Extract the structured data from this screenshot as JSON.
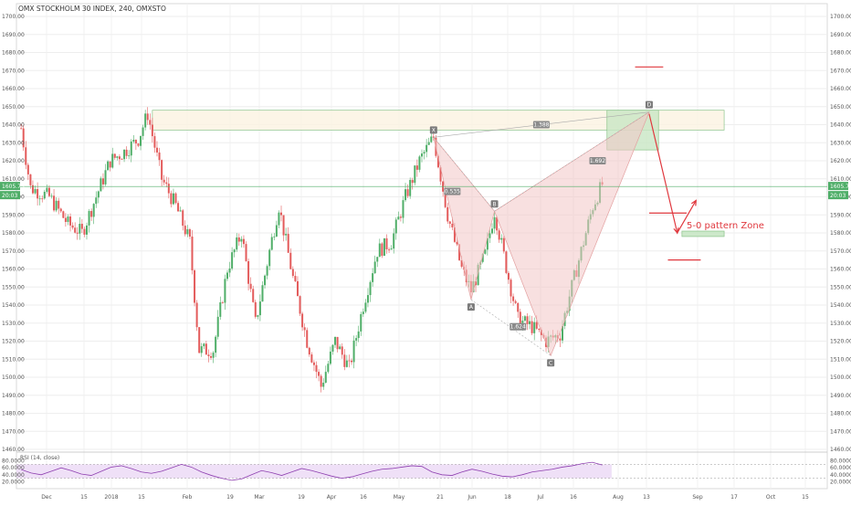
{
  "chart_data": {
    "type": "candlestick",
    "title": "OMX STOCKHOLM 30 INDEX, 240, OMXSTO",
    "y_axis": {
      "range": [
        1460,
        1700
      ],
      "ticks": [
        "1700.00",
        "1690.00",
        "1680.00",
        "1670.00",
        "1660.00",
        "1650.00",
        "1640.00",
        "1630.00",
        "1620.00",
        "1610.00",
        "1600.00",
        "1590.00",
        "1580.00",
        "1570.00",
        "1560.00",
        "1550.00",
        "1540.00",
        "1530.00",
        "1520.00",
        "1510.00",
        "1500.00",
        "1490.00",
        "1480.00",
        "1470.00",
        "1460.00"
      ]
    },
    "x_ticks": [
      "Dec",
      "15",
      "2018",
      "15",
      "Feb",
      "19",
      "Mar",
      "19",
      "Apr",
      "16",
      "May",
      "21",
      "Jun",
      "18",
      "Jul",
      "16",
      "Aug",
      "13",
      "Sep",
      "17",
      "Oct",
      "15"
    ],
    "last_price": "1605.75",
    "price_badge_2": "20:03",
    "grid": true,
    "price_path": [
      {
        "t": 0,
        "v": 1638
      },
      {
        "t": 2,
        "v": 1605
      },
      {
        "t": 6,
        "v": 1600
      },
      {
        "t": 10,
        "v": 1585
      },
      {
        "t": 13,
        "v": 1580
      },
      {
        "t": 16,
        "v": 1600
      },
      {
        "t": 19,
        "v": 1620
      },
      {
        "t": 22,
        "v": 1625
      },
      {
        "t": 25,
        "v": 1632
      },
      {
        "t": 27,
        "v": 1646
      },
      {
        "t": 30,
        "v": 1610
      },
      {
        "t": 33,
        "v": 1595
      },
      {
        "t": 36,
        "v": 1575
      },
      {
        "t": 38,
        "v": 1515
      },
      {
        "t": 41,
        "v": 1515
      },
      {
        "t": 44,
        "v": 1560
      },
      {
        "t": 47,
        "v": 1580
      },
      {
        "t": 50,
        "v": 1530
      },
      {
        "t": 53,
        "v": 1570
      },
      {
        "t": 55,
        "v": 1595
      },
      {
        "t": 58,
        "v": 1555
      },
      {
        "t": 61,
        "v": 1520
      },
      {
        "t": 64,
        "v": 1495
      },
      {
        "t": 67,
        "v": 1520
      },
      {
        "t": 70,
        "v": 1505
      },
      {
        "t": 73,
        "v": 1540
      },
      {
        "t": 76,
        "v": 1570
      },
      {
        "t": 79,
        "v": 1575
      },
      {
        "t": 82,
        "v": 1600
      },
      {
        "t": 85,
        "v": 1620
      },
      {
        "t": 88,
        "v": 1633
      },
      {
        "t": 91,
        "v": 1590
      },
      {
        "t": 94,
        "v": 1560
      },
      {
        "t": 96,
        "v": 1548
      },
      {
        "t": 99,
        "v": 1568
      },
      {
        "t": 101,
        "v": 1592
      },
      {
        "t": 104,
        "v": 1555
      },
      {
        "t": 106,
        "v": 1532
      },
      {
        "t": 109,
        "v": 1528
      },
      {
        "t": 112,
        "v": 1520
      },
      {
        "t": 115,
        "v": 1524
      },
      {
        "t": 117,
        "v": 1545
      },
      {
        "t": 120,
        "v": 1575
      },
      {
        "t": 122,
        "v": 1595
      },
      {
        "t": 124,
        "v": 1607
      }
    ],
    "pattern": {
      "points": [
        {
          "label": "X",
          "t": 88,
          "v": 1633
        },
        {
          "label": "A",
          "t": 96,
          "v": 1543
        },
        {
          "label": "B",
          "t": 101,
          "v": 1592
        },
        {
          "label": "C",
          "t": 113,
          "v": 1512
        },
        {
          "label": "D",
          "t": 134,
          "v": 1647
        }
      ],
      "ratios": [
        {
          "text": "0.535",
          "t": 92,
          "v": 1603
        },
        {
          "text": "1.624",
          "t": 106,
          "v": 1528
        },
        {
          "text": "1.692",
          "t": 123,
          "v": 1620
        },
        {
          "text": "1.388",
          "t": 111,
          "v": 1640
        }
      ]
    },
    "zones": [
      {
        "kind": "resistance",
        "t_start": 28,
        "t_end": 150,
        "v_low": 1637,
        "v_high": 1648
      },
      {
        "kind": "target",
        "t_start": 125,
        "t_end": 136,
        "v_low": 1626,
        "v_high": 1648
      },
      {
        "kind": "support",
        "t_start": 141,
        "t_end": 150,
        "v_low": 1578,
        "v_high": 1581
      }
    ],
    "projection": [
      {
        "t": 134,
        "v": 1646
      },
      {
        "t": 140,
        "v": 1580
      },
      {
        "t": 144,
        "v": 1598
      }
    ],
    "levels": [
      {
        "t_start": 131,
        "t_end": 137,
        "v": 1672
      },
      {
        "t_start": 134,
        "t_end": 142,
        "v": 1591
      },
      {
        "t_start": 138,
        "t_end": 145,
        "v": 1565
      }
    ],
    "annotation": "5-0 pattern Zone",
    "rsi": {
      "label": "RSI (14, close)",
      "ticks": [
        "80.0000",
        "60.0000",
        "40.0000",
        "20.0000"
      ],
      "range": [
        0,
        100
      ],
      "overbought": 70,
      "oversold": 30,
      "values": [
        55,
        45,
        40,
        50,
        60,
        52,
        42,
        38,
        50,
        62,
        66,
        58,
        48,
        44,
        50,
        60,
        70,
        62,
        48,
        38,
        30,
        24,
        28,
        40,
        52,
        46,
        38,
        48,
        58,
        52,
        44,
        36,
        30,
        34,
        42,
        50,
        56,
        58,
        62,
        66,
        64,
        48,
        40,
        38,
        48,
        56,
        50,
        42,
        36,
        34,
        40,
        48,
        52,
        56,
        62,
        66,
        72,
        76,
        68
      ]
    }
  }
}
